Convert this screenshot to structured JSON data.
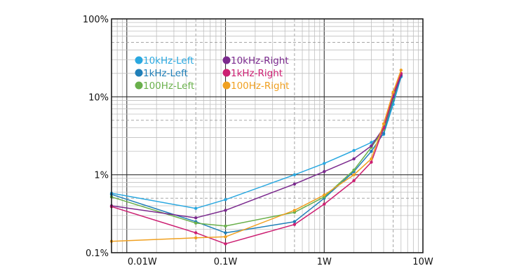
{
  "chart_data": {
    "type": "line",
    "x_scale": "log",
    "y_scale": "log",
    "xlim": [
      0.007,
      10
    ],
    "ylim": [
      0.001,
      1
    ],
    "grid": true,
    "legend_position": "top-left",
    "x_ticks": [
      {
        "value": 0.01,
        "label": "0.01W"
      },
      {
        "value": 0.1,
        "label": "0.1W"
      },
      {
        "value": 1,
        "label": "1W"
      },
      {
        "value": 10,
        "label": "10W"
      }
    ],
    "y_ticks": [
      {
        "value": 0.001,
        "label": "0.1%"
      },
      {
        "value": 0.01,
        "label": "1%"
      },
      {
        "value": 0.1,
        "label": "10%"
      },
      {
        "value": 1,
        "label": "100%"
      }
    ],
    "series": [
      {
        "name": "10kHz-Left",
        "color": "#2aa8e0",
        "x": [
          0.007,
          0.05,
          0.1,
          0.5,
          1,
          2,
          3,
          4,
          5,
          6
        ],
        "y": [
          0.0058,
          0.0037,
          0.0048,
          0.01,
          0.014,
          0.0205,
          0.026,
          0.033,
          0.08,
          0.18
        ]
      },
      {
        "name": "1kHz-Left",
        "color": "#1f7fb8",
        "x": [
          0.007,
          0.05,
          0.1,
          0.5,
          1,
          2,
          3,
          4,
          5,
          6
        ],
        "y": [
          0.0056,
          0.0025,
          0.0018,
          0.0025,
          0.005,
          0.011,
          0.02,
          0.034,
          0.09,
          0.185
        ]
      },
      {
        "name": "100Hz-Left",
        "color": "#6ab04c",
        "x": [
          0.007,
          0.05,
          0.1,
          0.5,
          1,
          2,
          3,
          4,
          5,
          6
        ],
        "y": [
          0.0052,
          0.0024,
          0.0022,
          0.0033,
          0.0052,
          0.0115,
          0.0225,
          0.038,
          0.095,
          0.195
        ]
      },
      {
        "name": "10kHz-Right",
        "color": "#7b2a8e",
        "x": [
          0.007,
          0.05,
          0.1,
          0.5,
          1,
          2,
          3,
          4,
          5,
          6
        ],
        "y": [
          0.004,
          0.0028,
          0.0035,
          0.0076,
          0.011,
          0.016,
          0.0235,
          0.04,
          0.1,
          0.19
        ]
      },
      {
        "name": "1kHz-Right",
        "color": "#cc1f72",
        "x": [
          0.007,
          0.05,
          0.1,
          0.5,
          1,
          2,
          3,
          4,
          5,
          6
        ],
        "y": [
          0.0039,
          0.0018,
          0.0013,
          0.0023,
          0.0042,
          0.0084,
          0.0145,
          0.04,
          0.11,
          0.2
        ]
      },
      {
        "name": "100Hz-Right",
        "color": "#f0a020",
        "x": [
          0.007,
          0.05,
          0.1,
          0.5,
          1,
          2,
          3,
          4,
          5,
          6
        ],
        "y": [
          0.0014,
          0.00155,
          0.0016,
          0.0035,
          0.0055,
          0.01,
          0.016,
          0.045,
          0.115,
          0.22
        ]
      }
    ]
  }
}
